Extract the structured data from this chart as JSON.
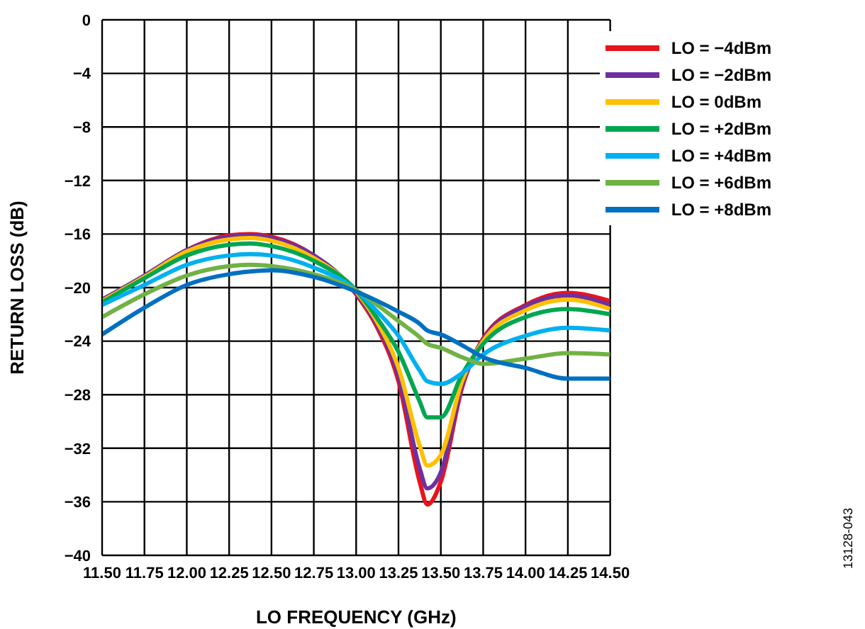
{
  "chart_data": {
    "type": "line",
    "xlabel": "LO FREQUENCY (GHz)",
    "ylabel": "RETURN LOSS (dB)",
    "x": [
      11.5,
      11.75,
      12,
      12.25,
      12.375,
      12.5,
      12.75,
      13,
      13.125,
      13.25,
      13.375,
      13.42,
      13.5,
      13.625,
      13.75,
      14,
      14.25,
      14.5
    ],
    "series": [
      {
        "name": "LO = −4dBm",
        "color": "#e8141c",
        "values": [
          -21,
          -19.2,
          -17.2,
          -16.1,
          -16,
          -16.2,
          -17.6,
          -20.5,
          -23,
          -27,
          -34.5,
          -36.2,
          -34.5,
          -27.5,
          -23.8,
          -21.3,
          -20.4,
          -21
        ]
      },
      {
        "name": "LO = −2dBm",
        "color": "#7030a0",
        "values": [
          -20.9,
          -19.1,
          -17.2,
          -16.2,
          -16.1,
          -16.3,
          -17.6,
          -20.4,
          -22.8,
          -26.6,
          -33.5,
          -35,
          -33.8,
          -27.3,
          -23.9,
          -21.4,
          -20.6,
          -21.3
        ]
      },
      {
        "name": "LO = 0dBm",
        "color": "#ffc000",
        "values": [
          -21,
          -19.2,
          -17.3,
          -16.4,
          -16.3,
          -16.5,
          -17.8,
          -20.3,
          -22.6,
          -26,
          -31.8,
          -33.3,
          -32.5,
          -27,
          -24,
          -21.7,
          -20.9,
          -21.6
        ]
      },
      {
        "name": "LO = +2dBm",
        "color": "#00a651",
        "values": [
          -21.1,
          -19.3,
          -17.6,
          -16.8,
          -16.7,
          -16.9,
          -18,
          -20.2,
          -22.3,
          -24.8,
          -28.5,
          -29.7,
          -29.7,
          -26.5,
          -24.2,
          -22.2,
          -21.6,
          -22
        ]
      },
      {
        "name": "LO = +4dBm",
        "color": "#00b0f0",
        "values": [
          -21.3,
          -19.8,
          -18.3,
          -17.6,
          -17.5,
          -17.6,
          -18.5,
          -20.2,
          -21.8,
          -23.6,
          -26.2,
          -27,
          -27.2,
          -26.4,
          -25,
          -23.6,
          -23,
          -23.2
        ]
      },
      {
        "name": "LO = +6dBm",
        "color": "#70b244",
        "values": [
          -22.2,
          -20.5,
          -19.1,
          -18.4,
          -18.3,
          -18.4,
          -19,
          -20.2,
          -21.3,
          -22.5,
          -23.7,
          -24.2,
          -24.5,
          -25.2,
          -25.7,
          -25.3,
          -24.9,
          -25
        ]
      },
      {
        "name": "LO = +8dBm",
        "color": "#0070c0",
        "values": [
          -23.5,
          -21.5,
          -19.8,
          -19,
          -18.8,
          -18.7,
          -19.2,
          -20.3,
          -21,
          -21.8,
          -22.7,
          -23.2,
          -23.5,
          -24.3,
          -25.2,
          -26,
          -26.8,
          -26.8
        ]
      }
    ],
    "xlim": [
      11.5,
      14.5
    ],
    "xticks": [
      {
        "value": 11.5,
        "label": "11.50"
      },
      11.75,
      {
        "value": 12,
        "label": "12.00"
      },
      12.25,
      {
        "value": 12.5,
        "label": "12.50"
      },
      12.75,
      {
        "value": 13,
        "label": "13.00"
      },
      13.25,
      {
        "value": 13.5,
        "label": "13.50"
      },
      13.75,
      {
        "value": 14,
        "label": "14.00"
      },
      14.25,
      {
        "value": 14.5,
        "label": "14.50"
      }
    ],
    "ylim": [
      -40,
      0
    ],
    "yticks": [
      {
        "value": -40,
        "label": "−40"
      },
      {
        "value": -36,
        "label": "−36"
      },
      {
        "value": -32,
        "label": "−32"
      },
      {
        "value": -28,
        "label": "−28"
      },
      {
        "value": -24,
        "label": "−24"
      },
      {
        "value": -20,
        "label": "−20"
      },
      {
        "value": -16,
        "label": "−16"
      },
      {
        "value": -12,
        "label": "−12"
      },
      {
        "value": -8,
        "label": "−8"
      },
      {
        "value": -4,
        "label": "−4"
      },
      0
    ],
    "grid": true,
    "legend": "top right",
    "marker": "none",
    "line_style": "solid",
    "annotations": [
      "13128-043"
    ]
  }
}
